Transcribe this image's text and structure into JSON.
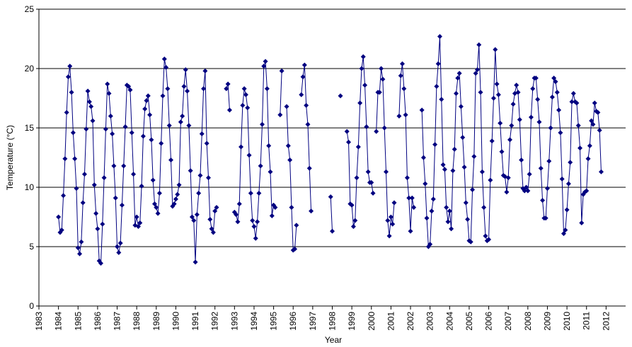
{
  "chart_data": {
    "type": "line",
    "xlabel": "Year",
    "ylabel": "Temperature (°C)",
    "xlim": [
      1983,
      2013
    ],
    "xticks": [
      1983,
      1984,
      1985,
      1986,
      1987,
      1988,
      1989,
      1990,
      1991,
      1992,
      1993,
      1994,
      1995,
      1996,
      1997,
      1998,
      1999,
      2000,
      2001,
      2002,
      2003,
      2004,
      2005,
      2006,
      2007,
      2008,
      2009,
      2010,
      2011,
      2012
    ],
    "ylim": [
      0,
      25
    ],
    "yticks": [
      0,
      5,
      10,
      15,
      20,
      25
    ],
    "grid": true,
    "series": [
      {
        "name": "Temperature",
        "color": "#000080",
        "x": [
          1984,
          1984.083,
          1984.167,
          1984.25,
          1984.333,
          1984.417,
          1984.5,
          1984.583,
          1984.667,
          1984.75,
          1984.833,
          1984.917,
          1985,
          1985.083,
          1985.167,
          1985.25,
          1985.333,
          1985.417,
          1985.5,
          1985.583,
          1985.667,
          1985.75,
          1985.833,
          1985.917,
          1986,
          1986.083,
          1986.167,
          1986.25,
          1986.333,
          1986.417,
          1986.5,
          1986.583,
          1986.667,
          1986.75,
          1986.833,
          1986.917,
          1987,
          1987.083,
          1987.167,
          1987.25,
          1987.333,
          1987.417,
          1987.5,
          1987.583,
          1987.667,
          1987.75,
          1987.833,
          1987.917,
          1988,
          1988.083,
          1988.167,
          1988.25,
          1988.333,
          1988.417,
          1988.5,
          1988.583,
          1988.667,
          1988.75,
          1988.833,
          1988.917,
          1989,
          1989.083,
          1989.167,
          1989.25,
          1989.333,
          1989.417,
          1989.5,
          1989.583,
          1989.667,
          1989.75,
          1989.833,
          1989.917,
          1990,
          1990.083,
          1990.167,
          1990.25,
          1990.333,
          1990.417,
          1990.5,
          1990.583,
          1990.667,
          1990.75,
          1990.833,
          1990.917,
          1991,
          1991.083,
          1991.167,
          1991.25,
          1991.333,
          1991.417,
          1991.5,
          1991.583,
          1991.667,
          1991.75,
          1991.833,
          1991.917,
          1992,
          1992.083,
          1992.167,
          1992.25,
          1992.333,
          1992.417,
          1992.5,
          1992.583,
          1992.667,
          1992.75,
          1992.833,
          1992.917,
          1993,
          1993.083,
          1993.167,
          1993.25,
          1993.333,
          1993.417,
          1993.5,
          1993.583,
          1993.667,
          1993.75,
          1993.833,
          1993.917,
          1994,
          1994.083,
          1994.167,
          1994.25,
          1994.333,
          1994.417,
          1994.5,
          1994.583,
          1994.667,
          1994.75,
          1994.833,
          1994.917,
          1995,
          1995.083,
          1995.167,
          1995.25,
          1995.333,
          1995.417,
          1995.5,
          1995.583,
          1995.667,
          1995.75,
          1995.833,
          1995.917,
          1996,
          1996.083,
          1996.167,
          1996.25,
          1996.333,
          1996.417,
          1996.5,
          1996.583,
          1996.667,
          1996.75,
          1996.833,
          1996.917,
          1997,
          1997.083,
          1997.167,
          1997.25,
          1997.333,
          1997.417,
          1997.5,
          1997.583,
          1997.667,
          1997.75,
          1997.833,
          1997.917,
          1998,
          1998.083,
          1998.167,
          1998.25,
          1998.333,
          1998.417,
          1998.5,
          1998.583,
          1998.667,
          1998.75,
          1998.833,
          1998.917,
          1999,
          1999.083,
          1999.167,
          1999.25,
          1999.333,
          1999.417,
          1999.5,
          1999.583,
          1999.667,
          1999.75,
          1999.833,
          1999.917,
          2000,
          2000.083,
          2000.167,
          2000.25,
          2000.333,
          2000.417,
          2000.5,
          2000.583,
          2000.667,
          2000.75,
          2000.833,
          2000.917,
          2001,
          2001.083,
          2001.167,
          2001.25,
          2001.333,
          2001.417,
          2001.5,
          2001.583,
          2001.667,
          2001.75,
          2001.833,
          2001.917,
          2002,
          2002.083,
          2002.167,
          2002.25,
          2002.333,
          2002.417,
          2002.5,
          2002.583,
          2002.667,
          2002.75,
          2002.833,
          2002.917,
          2003,
          2003.083,
          2003.167,
          2003.25,
          2003.333,
          2003.417,
          2003.5,
          2003.583,
          2003.667,
          2003.75,
          2003.833,
          2003.917,
          2004,
          2004.083,
          2004.167,
          2004.25,
          2004.333,
          2004.417,
          2004.5,
          2004.583,
          2004.667,
          2004.75,
          2004.833,
          2004.917,
          2005,
          2005.083,
          2005.167,
          2005.25,
          2005.333,
          2005.417,
          2005.5,
          2005.583,
          2005.667,
          2005.75,
          2005.833,
          2005.917,
          2006,
          2006.083,
          2006.167,
          2006.25,
          2006.333,
          2006.417,
          2006.5,
          2006.583,
          2006.667,
          2006.75,
          2006.833,
          2006.917,
          2007,
          2007.083,
          2007.167,
          2007.25,
          2007.333,
          2007.417,
          2007.5,
          2007.583,
          2007.667,
          2007.75,
          2007.833,
          2007.917,
          2008,
          2008.083,
          2008.167,
          2008.25,
          2008.333,
          2008.417,
          2008.5,
          2008.583,
          2008.667,
          2008.75,
          2008.833,
          2008.917,
          2009,
          2009.083,
          2009.167,
          2009.25,
          2009.333,
          2009.417,
          2009.5,
          2009.583,
          2009.667,
          2009.75,
          2009.833,
          2009.917,
          2010,
          2010.083,
          2010.167,
          2010.25,
          2010.333,
          2010.417,
          2010.5,
          2010.583,
          2010.667,
          2010.75,
          2010.833,
          2010.917,
          2011,
          2011.083,
          2011.167,
          2011.25,
          2011.333,
          2011.417,
          2011.5,
          2011.583,
          2011.667,
          2011.75,
          2011.833,
          2011.917
        ],
        "values": [
          7.5,
          6.2,
          6.4,
          9.3,
          12.4,
          16.3,
          19.3,
          20.2,
          18.0,
          14.6,
          12.4,
          9.9,
          4.9,
          4.4,
          5.4,
          8.7,
          11.1,
          14.9,
          18.1,
          17.2,
          16.8,
          15.6,
          10.2,
          7.8,
          6.5,
          3.8,
          3.6,
          6.9,
          10.8,
          14.9,
          18.7,
          17.9,
          16.0,
          14.5,
          11.8,
          9.1,
          5.0,
          4.5,
          5.3,
          8.5,
          11.8,
          15.1,
          18.6,
          18.5,
          18.2,
          14.6,
          11.1,
          6.8,
          7.5,
          6.7,
          7.0,
          10.1,
          14.3,
          16.6,
          17.3,
          17.7,
          16.1,
          14.0,
          10.6,
          8.6,
          8.3,
          7.8,
          9.5,
          13.7,
          17.7,
          20.8,
          20.1,
          18.3,
          15.2,
          12.3,
          8.4,
          8.6,
          9.0,
          9.4,
          10.2,
          15.5,
          16.0,
          18.5,
          19.9,
          18.1,
          15.2,
          11.4,
          7.5,
          7.2,
          3.7,
          7.7,
          9.5,
          11.0,
          14.5,
          18.3,
          19.8,
          13.7,
          10.8,
          7.3,
          6.5,
          6.2,
          8.0,
          8.3,
          null,
          null,
          null,
          null,
          null,
          18.3,
          18.7,
          16.5,
          null,
          null,
          7.9,
          7.7,
          7.1,
          8.6,
          13.4,
          16.9,
          18.3,
          17.8,
          16.7,
          12.7,
          9.5,
          7.2,
          6.7,
          5.7,
          7.1,
          9.5,
          11.8,
          15.3,
          20.2,
          20.6,
          18.3,
          13.5,
          11.3,
          7.6,
          8.5,
          8.3,
          null,
          null,
          16.1,
          19.8,
          null,
          null,
          16.8,
          13.5,
          12.3,
          8.3,
          4.7,
          4.8,
          6.8,
          null,
          null,
          17.8,
          19.3,
          20.3,
          16.9,
          15.3,
          11.6,
          8.0,
          null,
          null,
          null,
          null,
          null,
          null,
          null,
          null,
          null,
          null,
          null,
          9.2,
          6.3,
          null,
          null,
          null,
          null,
          17.7,
          null,
          null,
          null,
          14.7,
          13.8,
          8.6,
          8.5,
          6.7,
          7.2,
          10.8,
          13.4,
          17.1,
          20.0,
          21.0,
          18.6,
          15.1,
          11.3,
          10.4,
          10.4,
          9.5,
          null,
          14.7,
          18.0,
          18.0,
          20.0,
          19.1,
          15.0,
          11.3,
          7.2,
          5.9,
          7.5,
          6.9,
          8.7,
          null,
          null,
          16.0,
          19.4,
          20.4,
          18.3,
          16.1,
          10.8,
          9.1,
          6.3,
          9.1,
          8.3,
          null,
          null,
          null,
          null,
          16.5,
          12.5,
          10.3,
          7.4,
          5.0,
          5.2,
          8.0,
          9.0,
          13.6,
          18.5,
          20.4,
          22.7,
          17.4,
          11.9,
          11.5,
          8.3,
          7.1,
          8.0,
          6.5,
          11.4,
          13.2,
          17.9,
          19.2,
          19.6,
          16.8,
          14.2,
          11.7,
          8.7,
          7.3,
          5.5,
          5.4,
          9.8,
          12.6,
          19.6,
          19.9,
          22.0,
          18.0,
          11.3,
          8.3,
          5.9,
          5.5,
          5.6,
          10.6,
          13.9,
          17.5,
          21.6,
          18.7,
          17.8,
          15.4,
          13.0,
          11.0,
          10.9,
          9.6,
          10.8,
          14.0,
          15.2,
          17.0,
          17.9,
          18.6,
          18.0,
          15.7,
          12.3,
          9.9,
          9.7,
          10.0,
          9.7,
          11.1,
          15.9,
          18.3,
          19.2,
          19.2,
          17.4,
          15.5,
          11.6,
          8.9,
          7.4,
          7.4,
          9.9,
          12.2,
          15.0,
          17.6,
          19.2,
          18.9,
          18.0,
          16.5,
          14.6,
          10.7,
          6.1,
          6.4,
          8.1,
          10.3,
          12.1,
          17.2,
          17.9,
          17.2,
          17.1,
          15.2,
          13.3,
          7.0,
          9.4,
          9.6,
          9.7,
          12.4,
          13.5,
          15.6,
          15.3,
          17.1,
          16.4,
          16.3,
          14.8,
          11.3,
          null,
          null
        ]
      }
    ]
  }
}
